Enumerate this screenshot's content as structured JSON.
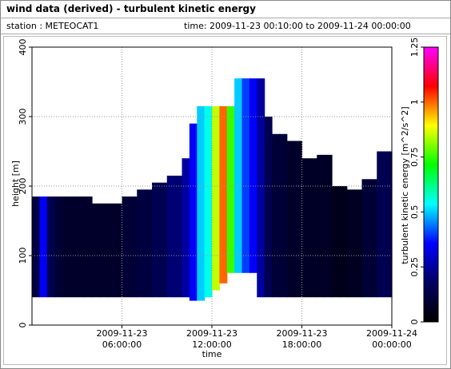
{
  "chart_data": {
    "type": "heatmap",
    "title": "wind data (derived) - turbulent kinetic energy",
    "station": "station : METEOCAT1",
    "period": "time: 2009-11-23 00:10:00 to 2009-11-24 00:00:00",
    "x_label": "time",
    "y_label": "height [m]",
    "colorbar_label": "turbulent kinetic energy [m^2/s^2]",
    "xlim": [
      "2009-11-23 00:00:00",
      "2009-11-24 00:00:00"
    ],
    "xticks": [
      "2009-11-23 06:00:00",
      "2009-11-23 12:00:00",
      "2009-11-23 18:00:00",
      "2009-11-24 00:00:00"
    ],
    "ylim": [
      0,
      400
    ],
    "yticks": [
      0,
      100,
      200,
      300,
      400
    ],
    "clim": [
      0,
      1.25
    ],
    "cticks": [
      0,
      0.25,
      0.5,
      0.75,
      1,
      1.25
    ],
    "colormap": [
      "#000000",
      "#000060",
      "#0000ff",
      "#00ffff",
      "#00ff00",
      "#ffff00",
      "#ff0000",
      "#ff00ff"
    ],
    "grid": true,
    "column_width_minutes": 30,
    "x": [
      "2009-11-23 00:00:00",
      "2009-11-23 00:30:00",
      "2009-11-23 01:00:00",
      "2009-11-23 01:30:00",
      "2009-11-23 02:00:00",
      "2009-11-23 02:30:00",
      "2009-11-23 03:00:00",
      "2009-11-23 03:30:00",
      "2009-11-23 04:00:00",
      "2009-11-23 04:30:00",
      "2009-11-23 05:00:00",
      "2009-11-23 05:30:00",
      "2009-11-23 06:00:00",
      "2009-11-23 06:30:00",
      "2009-11-23 07:00:00",
      "2009-11-23 07:30:00",
      "2009-11-23 08:00:00",
      "2009-11-23 08:30:00",
      "2009-11-23 09:00:00",
      "2009-11-23 09:30:00",
      "2009-11-23 10:00:00",
      "2009-11-23 10:30:00",
      "2009-11-23 11:00:00",
      "2009-11-23 11:30:00",
      "2009-11-23 12:00:00",
      "2009-11-23 12:30:00",
      "2009-11-23 13:00:00",
      "2009-11-23 13:30:00",
      "2009-11-23 14:00:00",
      "2009-11-23 14:30:00",
      "2009-11-23 15:00:00",
      "2009-11-23 15:30:00",
      "2009-11-23 16:00:00",
      "2009-11-23 16:30:00",
      "2009-11-23 17:00:00",
      "2009-11-23 17:30:00",
      "2009-11-23 18:00:00",
      "2009-11-23 18:30:00",
      "2009-11-23 19:00:00",
      "2009-11-23 19:30:00",
      "2009-11-23 20:00:00",
      "2009-11-23 20:30:00",
      "2009-11-23 21:00:00",
      "2009-11-23 21:30:00",
      "2009-11-23 22:00:00",
      "2009-11-23 22:30:00",
      "2009-11-23 23:00:00",
      "2009-11-23 23:30:00"
    ],
    "bottom": [
      40,
      40,
      40,
      40,
      40,
      40,
      40,
      40,
      40,
      40,
      40,
      40,
      40,
      40,
      40,
      40,
      40,
      40,
      40,
      40,
      40,
      35,
      35,
      40,
      50,
      60,
      75,
      75,
      75,
      75,
      40,
      40,
      40,
      40,
      40,
      40,
      40,
      40,
      40,
      40,
      40,
      40,
      40,
      40,
      40,
      40,
      40,
      40
    ],
    "top": [
      185,
      185,
      185,
      185,
      185,
      185,
      185,
      185,
      175,
      175,
      175,
      175,
      185,
      185,
      195,
      195,
      205,
      205,
      215,
      215,
      240,
      290,
      315,
      315,
      315,
      315,
      315,
      355,
      355,
      355,
      355,
      300,
      275,
      275,
      265,
      265,
      240,
      240,
      245,
      245,
      200,
      200,
      195,
      195,
      210,
      210,
      250,
      250
    ],
    "values": [
      0.12,
      0.35,
      0.15,
      0.1,
      0.08,
      0.08,
      0.08,
      0.08,
      0.08,
      0.08,
      0.08,
      0.08,
      0.1,
      0.1,
      0.12,
      0.12,
      0.15,
      0.15,
      0.2,
      0.2,
      0.25,
      0.35,
      0.5,
      0.55,
      0.85,
      1.0,
      0.75,
      0.5,
      0.4,
      0.35,
      0.25,
      0.15,
      0.1,
      0.1,
      0.08,
      0.08,
      0.07,
      0.07,
      0.07,
      0.07,
      0.05,
      0.05,
      0.06,
      0.06,
      0.1,
      0.1,
      0.15,
      0.15
    ]
  }
}
